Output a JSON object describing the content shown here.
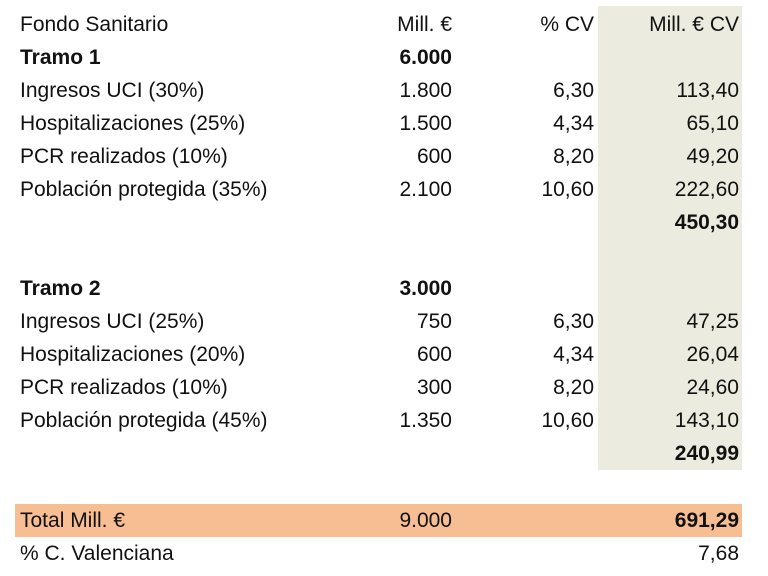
{
  "table": {
    "header": {
      "label": "Fondo Sanitario",
      "mill": "Mill. €",
      "pct": "% CV",
      "millcv": "Mill. € CV"
    },
    "tramo1": {
      "label": "Tramo 1",
      "total": "6.000",
      "rows": [
        {
          "label": "Ingresos UCI (30%)",
          "mill": "1.800",
          "pct": "6,30",
          "millcv": "113,40"
        },
        {
          "label": "Hospitalizaciones (25%)",
          "mill": "1.500",
          "pct": "4,34",
          "millcv": "65,10"
        },
        {
          "label": "PCR realizados (10%)",
          "mill": "600",
          "pct": "8,20",
          "millcv": "49,20"
        },
        {
          "label": "Población protegida (35%)",
          "mill": "2.100",
          "pct": "10,60",
          "millcv": "222,60"
        }
      ],
      "subtotal": "450,30"
    },
    "tramo2": {
      "label": "Tramo 2",
      "total": "3.000",
      "rows": [
        {
          "label": "Ingresos UCI (25%)",
          "mill": "750",
          "pct": "6,30",
          "millcv": "47,25"
        },
        {
          "label": "Hospitalizaciones (20%)",
          "mill": "600",
          "pct": "4,34",
          "millcv": "26,04"
        },
        {
          "label": "PCR realizados (10%)",
          "mill": "300",
          "pct": "8,20",
          "millcv": "24,60"
        },
        {
          "label": "Población protegida (45%)",
          "mill": "1.350",
          "pct": "10,60",
          "millcv": "143,10"
        }
      ],
      "subtotal": "240,99"
    },
    "total": {
      "label": "Total Mill. €",
      "mill": "9.000",
      "millcv": "691,29"
    },
    "pct_cv": {
      "label": "% C. Valenciana",
      "value": "7,68"
    }
  },
  "colors": {
    "cv_column_shade": "#ecebdf",
    "total_band": "#f7be94"
  }
}
